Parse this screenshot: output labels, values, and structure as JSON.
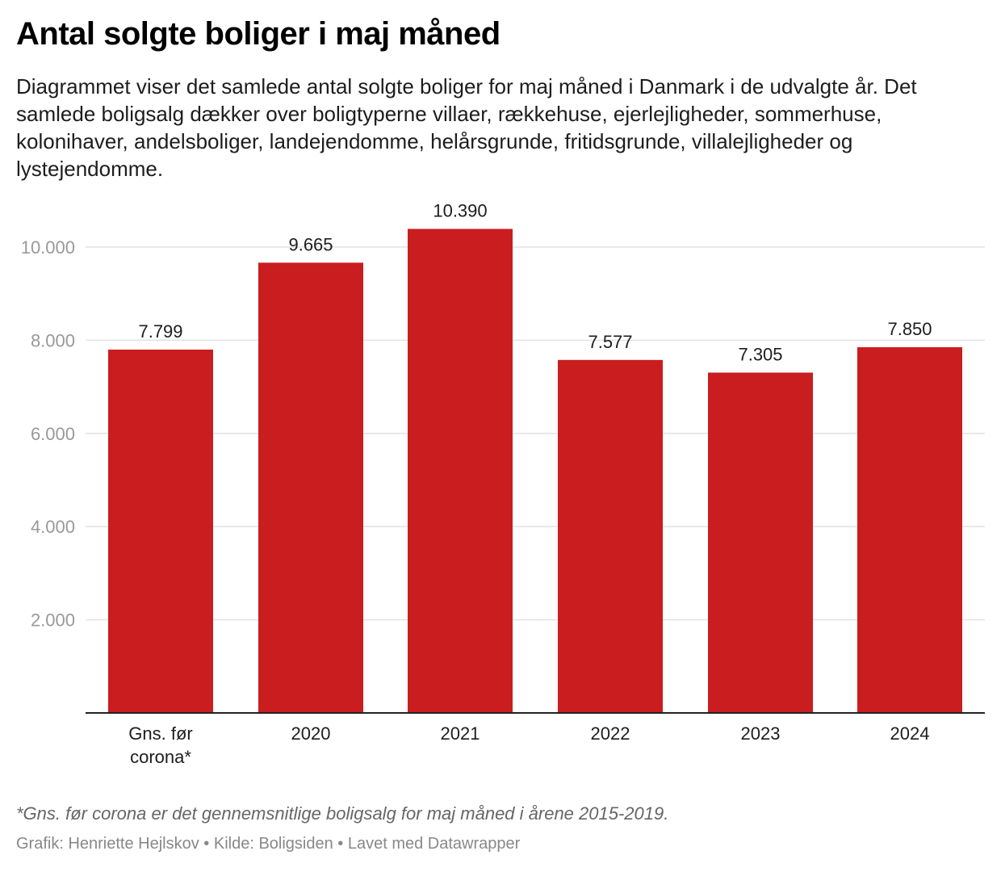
{
  "title": "Antal solgte boliger i maj måned",
  "description": "Diagrammet viser det samlede antal solgte boliger for maj måned i Danmark i de udvalgte år. Det samlede boligsalg dækker over boligtyperne villaer, rækkehuse, ejerlejligheder, sommerhuse, kolonihaver, andelsboliger, landejendomme, helårsgrunde, fritidsgrunde, villalejligheder og lystejendomme.",
  "footnote": "*Gns. før corona er det gennemsnitlige boligsalg for maj måned i årene 2015-2019.",
  "credit": "Grafik: Henriette Hejlskov • Kilde: Boligsiden • Lavet med Datawrapper",
  "colors": {
    "bar": "#c91d1f",
    "grid": "#e2e2e2",
    "axis_text": "#999999"
  },
  "chart_data": {
    "type": "bar",
    "title": "Antal solgte boliger i maj måned",
    "xlabel": "",
    "ylabel": "",
    "categories": [
      [
        "Gns. før",
        "corona*"
      ],
      [
        "2020"
      ],
      [
        "2021"
      ],
      [
        "2022"
      ],
      [
        "2023"
      ],
      [
        "2024"
      ]
    ],
    "values": [
      7799,
      9665,
      10390,
      7577,
      7305,
      7850
    ],
    "value_labels": [
      "7.799",
      "9.665",
      "10.390",
      "7.577",
      "7.305",
      "7.850"
    ],
    "yticks": [
      2000,
      4000,
      6000,
      8000,
      10000
    ],
    "ytick_labels": [
      "2.000",
      "4.000",
      "6.000",
      "8.000",
      "10.000"
    ],
    "ylim": [
      0,
      10000
    ],
    "grid": true
  }
}
